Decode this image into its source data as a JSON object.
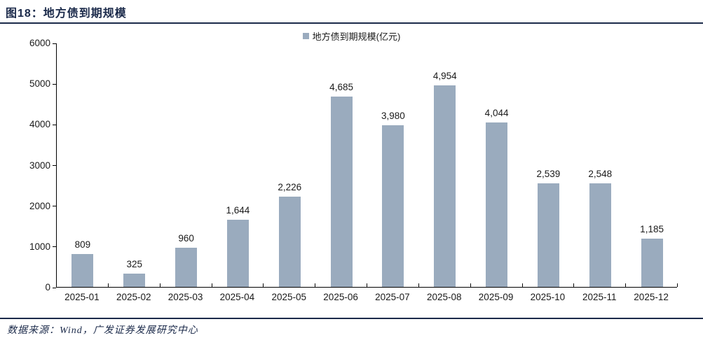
{
  "header": {
    "title": "图18：地方债到期规模"
  },
  "legend": {
    "label": "地方债到期规模(亿元)"
  },
  "chart_data": {
    "type": "bar",
    "title": "地方债到期规模",
    "categories": [
      "2025-01",
      "2025-02",
      "2025-03",
      "2025-04",
      "2025-05",
      "2025-06",
      "2025-07",
      "2025-08",
      "2025-09",
      "2025-10",
      "2025-11",
      "2025-12"
    ],
    "values": [
      809,
      325,
      960,
      1644,
      2226,
      4685,
      3980,
      4954,
      4044,
      2539,
      2548,
      1185
    ],
    "value_labels": [
      "809",
      "325",
      "960",
      "1,644",
      "2,226",
      "4,685",
      "3,980",
      "4,954",
      "4,044",
      "2,539",
      "2,548",
      "1,185"
    ],
    "ylim": [
      0,
      6000
    ],
    "yticks": [
      0,
      1000,
      2000,
      3000,
      4000,
      5000,
      6000
    ],
    "xlabel": "",
    "ylabel": "",
    "grid": false,
    "legend_entries": [
      "地方债到期规模(亿元)"
    ],
    "legend_position": "top-center"
  },
  "footer": {
    "source": "数据来源：Wind，广发证券发展研究中心"
  },
  "colors": {
    "bar": "#9aabbe",
    "accent_navy": "#1b2a4a",
    "axis": "#000000",
    "text": "#1a1a1a"
  }
}
